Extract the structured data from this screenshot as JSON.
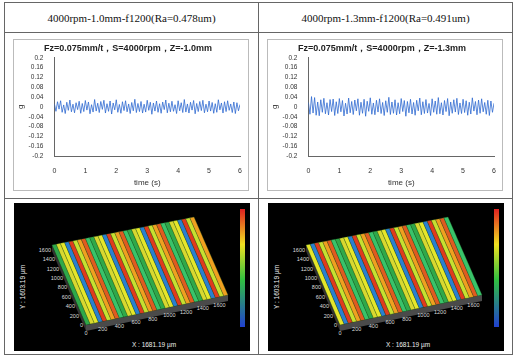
{
  "header": [
    "4000rpm-1.0mm-f1200(Ra=0.478um)",
    "4000rpm-1.3mm-f1200(Ra=0.491um)"
  ],
  "chart_data": [
    {
      "type": "line",
      "title": "Fz=0.075mm/t，S=4000rpm，Z=-1.0mm",
      "x_label": "time (s)",
      "y_label": "g",
      "color": "#2f6ad0",
      "grid": false,
      "xlim": [
        0,
        6
      ],
      "xticks": [
        0,
        1,
        2,
        3,
        4,
        5,
        6
      ],
      "ylim": [
        -0.2,
        0.2
      ],
      "yticks": [
        0.2,
        0.16,
        0.12,
        0.08,
        0.04,
        0,
        -0.04,
        -0.08,
        -0.12,
        -0.16,
        -0.2
      ],
      "x": [
        0,
        0.05,
        0.1,
        0.15,
        0.2,
        0.25,
        0.3,
        0.35,
        0.4,
        0.45,
        0.5,
        0.55,
        0.6,
        0.65,
        0.7,
        0.75,
        0.8,
        0.85,
        0.9,
        0.95,
        1,
        1.05,
        1.1,
        1.15,
        1.2,
        1.25,
        1.3,
        1.35,
        1.4,
        1.45,
        1.5,
        1.55,
        1.6,
        1.65,
        1.7,
        1.75,
        1.8,
        1.85,
        1.9,
        1.95,
        2,
        2.05,
        2.1,
        2.15,
        2.2,
        2.25,
        2.3,
        2.35,
        2.4,
        2.45,
        2.5,
        2.55,
        2.6,
        2.65,
        2.7,
        2.75,
        2.8,
        2.85,
        2.9,
        2.95,
        3,
        3.05,
        3.1,
        3.15,
        3.2,
        3.25,
        3.3,
        3.35,
        3.4,
        3.45,
        3.5,
        3.55,
        3.6,
        3.65,
        3.7,
        3.75,
        3.8,
        3.85,
        3.9,
        3.95,
        4,
        4.05,
        4.1,
        4.15,
        4.2,
        4.25,
        4.3,
        4.35,
        4.4,
        4.45,
        4.5,
        4.55,
        4.6,
        4.65,
        4.7,
        4.75,
        4.8,
        4.85,
        4.9,
        4.95,
        5,
        5.05,
        5.1,
        5.15,
        5.2,
        5.25,
        5.3,
        5.35,
        5.4,
        5.45,
        5.5,
        5.55,
        5.6,
        5.65,
        5.7,
        5.75,
        5.8,
        5.85,
        5.9,
        5.95,
        6
      ],
      "values": [
        0.012,
        -0.018,
        0.021,
        -0.009,
        0.025,
        -0.022,
        0.008,
        -0.027,
        0.019,
        -0.014,
        0.028,
        -0.02,
        0.011,
        -0.024,
        0.017,
        -0.011,
        0.023,
        -0.026,
        0.014,
        -0.019,
        0.026,
        -0.013,
        0.02,
        -0.028,
        0.009,
        -0.021,
        0.03,
        -0.017,
        0.015,
        -0.023,
        0.022,
        -0.01,
        0.027,
        -0.025,
        0.013,
        -0.018,
        0.024,
        -0.029,
        0.016,
        -0.012,
        0.029,
        -0.022,
        0.01,
        -0.026,
        0.021,
        -0.015,
        0.025,
        -0.02,
        0.012,
        -0.027,
        0.018,
        -0.016,
        0.031,
        -0.023,
        0.014,
        -0.019,
        0.022,
        -0.025,
        0.011,
        -0.021,
        0.027,
        -0.014,
        0.019,
        -0.03,
        0.016,
        -0.017,
        0.024,
        -0.022,
        0.013,
        -0.026,
        0.02,
        -0.011,
        0.028,
        -0.024,
        0.015,
        -0.02,
        0.023,
        -0.018,
        0.009,
        -0.027,
        0.025,
        -0.016,
        0.017,
        -0.023,
        0.03,
        -0.021,
        0.012,
        -0.025,
        0.019,
        -0.013,
        0.026,
        -0.028,
        0.014,
        -0.019,
        0.022,
        -0.015,
        0.027,
        -0.024,
        0.011,
        -0.02,
        0.024,
        -0.017,
        0.018,
        -0.026,
        0.013,
        -0.022,
        0.029,
        -0.012,
        0.016,
        -0.025,
        0.021,
        -0.019,
        0.025,
        -0.014,
        0.012,
        -0.023,
        0.02,
        -0.027,
        0.017,
        -0.016,
        0.01
      ]
    },
    {
      "type": "line",
      "title": "Fz=0.075mm/t，S=4000rpm，Z=-1.3mm",
      "x_label": "time (s)",
      "y_label": "g",
      "color": "#2f6ad0",
      "grid": false,
      "xlim": [
        0,
        6
      ],
      "xticks": [
        0,
        1,
        2,
        3,
        4,
        5,
        6
      ],
      "ylim": [
        -0.2,
        0.2
      ],
      "yticks": [
        0.2,
        0.16,
        0.12,
        0.08,
        0.04,
        0,
        -0.04,
        -0.08,
        -0.12,
        -0.16,
        -0.2
      ],
      "x": [
        0,
        0.05,
        0.1,
        0.15,
        0.2,
        0.25,
        0.3,
        0.35,
        0.4,
        0.45,
        0.5,
        0.55,
        0.6,
        0.65,
        0.7,
        0.75,
        0.8,
        0.85,
        0.9,
        0.95,
        1,
        1.05,
        1.1,
        1.15,
        1.2,
        1.25,
        1.3,
        1.35,
        1.4,
        1.45,
        1.5,
        1.55,
        1.6,
        1.65,
        1.7,
        1.75,
        1.8,
        1.85,
        1.9,
        1.95,
        2,
        2.05,
        2.1,
        2.15,
        2.2,
        2.25,
        2.3,
        2.35,
        2.4,
        2.45,
        2.5,
        2.55,
        2.6,
        2.65,
        2.7,
        2.75,
        2.8,
        2.85,
        2.9,
        2.95,
        3,
        3.05,
        3.1,
        3.15,
        3.2,
        3.25,
        3.3,
        3.35,
        3.4,
        3.45,
        3.5,
        3.55,
        3.6,
        3.65,
        3.7,
        3.75,
        3.8,
        3.85,
        3.9,
        3.95,
        4,
        4.05,
        4.1,
        4.15,
        4.2,
        4.25,
        4.3,
        4.35,
        4.4,
        4.45,
        4.5,
        4.55,
        4.6,
        4.65,
        4.7,
        4.75,
        4.8,
        4.85,
        4.9,
        4.95,
        5,
        5.05,
        5.1,
        5.15,
        5.2,
        5.25,
        5.3,
        5.35,
        5.4,
        5.45,
        5.5,
        5.55,
        5.6,
        5.65,
        5.7,
        5.75,
        5.8,
        5.85,
        5.9,
        5.95,
        6
      ],
      "values": [
        0.018,
        -0.03,
        0.042,
        -0.025,
        0.038,
        -0.034,
        0.02,
        -0.036,
        0.029,
        -0.022,
        0.035,
        -0.028,
        0.017,
        -0.033,
        0.03,
        -0.019,
        0.032,
        -0.035,
        0.021,
        -0.027,
        0.034,
        -0.02,
        0.026,
        -0.037,
        0.015,
        -0.029,
        0.036,
        -0.024,
        0.022,
        -0.031,
        0.028,
        -0.016,
        0.033,
        -0.034,
        0.019,
        -0.026,
        0.031,
        -0.038,
        0.023,
        -0.018,
        0.037,
        -0.03,
        0.016,
        -0.032,
        0.027,
        -0.021,
        0.033,
        -0.027,
        0.018,
        -0.035,
        0.025,
        -0.022,
        0.039,
        -0.031,
        0.02,
        -0.026,
        0.029,
        -0.033,
        0.017,
        -0.028,
        0.034,
        -0.019,
        0.026,
        -0.038,
        0.022,
        -0.024,
        0.031,
        -0.029,
        0.018,
        -0.034,
        0.027,
        -0.016,
        0.036,
        -0.032,
        0.021,
        -0.027,
        0.03,
        -0.025,
        0.014,
        -0.035,
        0.033,
        -0.022,
        0.024,
        -0.03,
        0.038,
        -0.028,
        0.017,
        -0.033,
        0.026,
        -0.019,
        0.034,
        -0.036,
        0.02,
        -0.026,
        0.029,
        -0.021,
        0.035,
        -0.031,
        0.016,
        -0.027,
        0.031,
        -0.023,
        0.025,
        -0.034,
        0.019,
        -0.029,
        0.037,
        -0.017,
        0.022,
        -0.032,
        0.028,
        -0.026,
        0.033,
        -0.02,
        0.018,
        -0.03,
        0.027,
        -0.035,
        0.024,
        -0.022,
        0.015
      ]
    }
  ],
  "surfaces": [
    {
      "x_label": "X : 1681.19 µm",
      "y_label": "Y : 1603.19 µm",
      "x_ticks": [
        0,
        200,
        400,
        600,
        800,
        1000,
        1200,
        1400,
        1600
      ],
      "y_ticks": [
        0,
        200,
        400,
        600,
        800,
        1000,
        1200,
        1400,
        1600
      ]
    },
    {
      "x_label": "X : 1681.19 µm",
      "y_label": "Y : 1603.19 µm",
      "x_ticks": [
        0,
        200,
        400,
        600,
        800,
        1000,
        1200,
        1400,
        1600
      ],
      "y_ticks": [
        0,
        200,
        400,
        600,
        800,
        1000,
        1200,
        1400,
        1600
      ]
    }
  ]
}
